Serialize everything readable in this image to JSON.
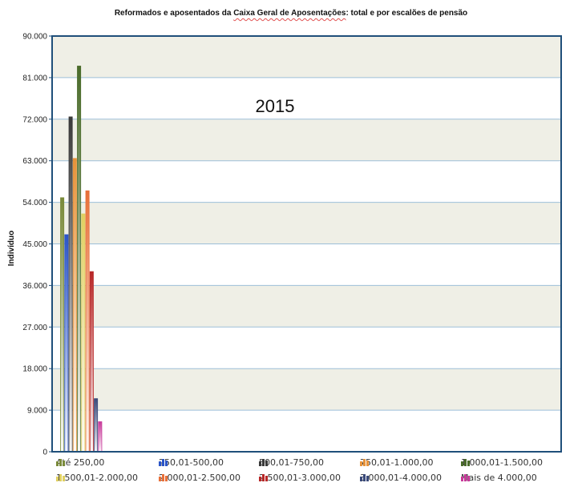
{
  "chart_data": {
    "type": "bar",
    "title_parts": [
      "Reformados e aposentados da ",
      "Caixa Geral de Aposentações",
      ": total e por escalões de pensão"
    ],
    "annotation": "2015",
    "ylabel": "Indivíduo",
    "ylim": [
      0,
      90000
    ],
    "y_ticks": [
      "0",
      "9.000",
      "18.000",
      "27.000",
      "36.000",
      "45.000",
      "54.000",
      "63.000",
      "72.000",
      "81.000",
      "90.000"
    ],
    "grid": true,
    "legend_position": "bottom",
    "series": [
      {
        "name": "Até 250,00",
        "values": [
          55000
        ],
        "color": "#7a8a3a"
      },
      {
        "name": "250,01-500,00",
        "values": [
          47000
        ],
        "color": "#2b55c8"
      },
      {
        "name": "500,01-750,00",
        "values": [
          72500
        ],
        "color": "#3a3a3a"
      },
      {
        "name": "750,01-1.000,00",
        "values": [
          63500
        ],
        "color": "#e8933a"
      },
      {
        "name": "1.000,01-1.500,00",
        "values": [
          83500
        ],
        "color": "#4a6b2a"
      },
      {
        "name": "1.500,01-2.000,00",
        "values": [
          51500
        ],
        "color": "#e0d060"
      },
      {
        "name": "2.000,01-2.500,00",
        "values": [
          56500
        ],
        "color": "#e8703a"
      },
      {
        "name": "2.500,01-3.000,00",
        "values": [
          39000
        ],
        "color": "#b82828"
      },
      {
        "name": "3.000,01-4.000,00",
        "values": [
          11500
        ],
        "color": "#3a4a7a"
      },
      {
        "name": "Mais de 4.000,00",
        "values": [
          6500
        ],
        "color": "#c83a9a"
      }
    ]
  }
}
